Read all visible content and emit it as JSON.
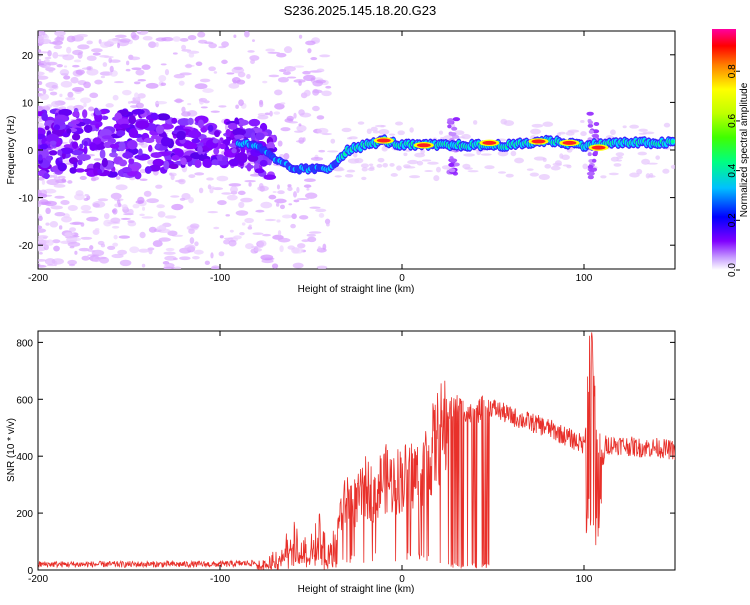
{
  "title": "S236.2025.145.18.20.G23",
  "chart_data": [
    {
      "type": "heatmap",
      "xlabel": "Height of straight line (km)",
      "ylabel": "Frequency (Hz)",
      "xlim": [
        -200,
        150
      ],
      "ylim": [
        -25,
        25
      ],
      "xticks": [
        -200,
        -100,
        0,
        100
      ],
      "yticks": [
        -20,
        -10,
        0,
        10,
        20
      ],
      "ridge": [
        {
          "x": -90,
          "y": 1.5
        },
        {
          "x": -80,
          "y": 1
        },
        {
          "x": -70,
          "y": -2
        },
        {
          "x": -60,
          "y": -4
        },
        {
          "x": -50,
          "y": -4
        },
        {
          "x": -40,
          "y": -4
        },
        {
          "x": -30,
          "y": 0
        },
        {
          "x": -20,
          "y": 1
        },
        {
          "x": -10,
          "y": 2
        },
        {
          "x": 0,
          "y": 1
        },
        {
          "x": 20,
          "y": 1
        },
        {
          "x": 40,
          "y": 1
        },
        {
          "x": 60,
          "y": 1
        },
        {
          "x": 80,
          "y": 2
        },
        {
          "x": 100,
          "y": 1
        },
        {
          "x": 120,
          "y": 1.5
        },
        {
          "x": 150,
          "y": 1.5
        }
      ],
      "hotspots": [
        {
          "x": -10,
          "y": 2
        },
        {
          "x": 12,
          "y": 1
        },
        {
          "x": 48,
          "y": 1.5
        },
        {
          "x": 75,
          "y": 1.8
        },
        {
          "x": 92,
          "y": 1.5
        },
        {
          "x": 108,
          "y": 0.5
        }
      ],
      "colorbar": {
        "label": "Normalized spectral amplitude",
        "ticks": [
          "0.0",
          "0.2",
          "0.4",
          "0.6",
          "0.8"
        ],
        "range": [
          0,
          0.97
        ],
        "colors": [
          "#ffffff",
          "#8000ff",
          "#0000ff",
          "#00c0ff",
          "#00ff80",
          "#40ff00",
          "#c0ff00",
          "#ffff00",
          "#ff8000",
          "#ff0000",
          "#ff00a0"
        ]
      }
    },
    {
      "type": "line",
      "xlabel": "Height of straight line (km)",
      "ylabel": "SNR (10 * v/v)",
      "xlim": [
        -200,
        150
      ],
      "ylim": [
        0,
        840
      ],
      "xticks": [
        -200,
        -100,
        0,
        100
      ],
      "yticks": [
        0,
        200,
        400,
        600,
        800
      ],
      "color": "#e8302a",
      "series_envelope": [
        {
          "x": -200,
          "y": 20
        },
        {
          "x": -150,
          "y": 20
        },
        {
          "x": -100,
          "y": 20
        },
        {
          "x": -80,
          "y": 25
        },
        {
          "x": -70,
          "y": 60
        },
        {
          "x": -60,
          "y": 150
        },
        {
          "x": -55,
          "y": 90
        },
        {
          "x": -50,
          "y": 120
        },
        {
          "x": -45,
          "y": 170
        },
        {
          "x": -40,
          "y": 100
        },
        {
          "x": -35,
          "y": 200
        },
        {
          "x": -30,
          "y": 280
        },
        {
          "x": -25,
          "y": 260
        },
        {
          "x": -20,
          "y": 320
        },
        {
          "x": -15,
          "y": 300
        },
        {
          "x": -10,
          "y": 360
        },
        {
          "x": -5,
          "y": 340
        },
        {
          "x": 0,
          "y": 360
        },
        {
          "x": 10,
          "y": 380
        },
        {
          "x": 15,
          "y": 440
        },
        {
          "x": 20,
          "y": 520
        },
        {
          "x": 25,
          "y": 560
        },
        {
          "x": 30,
          "y": 580
        },
        {
          "x": 35,
          "y": 560
        },
        {
          "x": 40,
          "y": 540
        },
        {
          "x": 45,
          "y": 580
        },
        {
          "x": 50,
          "y": 570
        },
        {
          "x": 60,
          "y": 540
        },
        {
          "x": 70,
          "y": 520
        },
        {
          "x": 80,
          "y": 500
        },
        {
          "x": 90,
          "y": 470
        },
        {
          "x": 100,
          "y": 440
        },
        {
          "x": 104,
          "y": 760
        },
        {
          "x": 108,
          "y": 300
        },
        {
          "x": 112,
          "y": 440
        },
        {
          "x": 120,
          "y": 440
        },
        {
          "x": 130,
          "y": 430
        },
        {
          "x": 140,
          "y": 430
        },
        {
          "x": 150,
          "y": 420
        }
      ]
    }
  ]
}
